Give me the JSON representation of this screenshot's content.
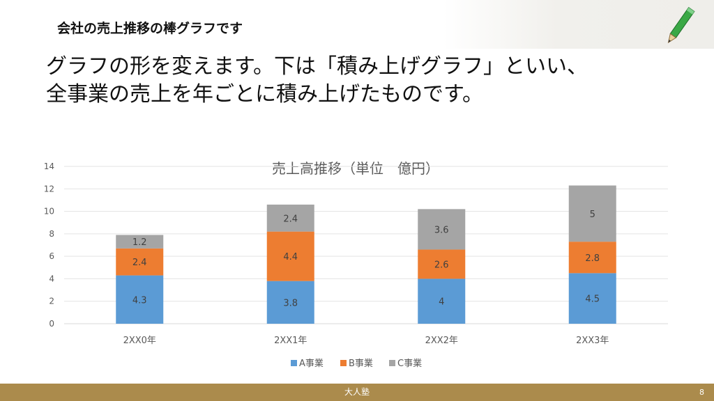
{
  "slide": {
    "title": "会社の売上推移の棒グラフです",
    "body_line1": "グラフの形を変えます。下は「積み上げグラフ」といい、",
    "body_line2": "全事業の売上を年ごとに積み上げたものです。",
    "pencil_icon": "green-pencil-icon"
  },
  "footer": {
    "center_text": "大人塾",
    "page_number": "8",
    "color": "#ab8b4c"
  },
  "chart_data": {
    "type": "bar",
    "stacked": true,
    "title": "売上高推移（単位　億円）",
    "categories": [
      "2XX0年",
      "2XX1年",
      "2XX2年",
      "2XX3年"
    ],
    "series": [
      {
        "name": "A事業",
        "values": [
          4.3,
          3.8,
          4,
          4.5
        ],
        "labels": [
          "4.3",
          "3.8",
          "4",
          "4.5"
        ],
        "color": "#5b9bd5"
      },
      {
        "name": "B事業",
        "values": [
          2.4,
          4.4,
          2.6,
          2.8
        ],
        "labels": [
          "2.4",
          "4.4",
          "2.6",
          "2.8"
        ],
        "color": "#ed7d31"
      },
      {
        "name": "C事業",
        "values": [
          1.2,
          2.4,
          3.6,
          5
        ],
        "labels": [
          "1.2",
          "2.4",
          "3.6",
          "5"
        ],
        "color": "#a5a5a5"
      }
    ],
    "y_ticks": [
      "0",
      "2",
      "4",
      "6",
      "8",
      "10",
      "12",
      "14"
    ],
    "ylim": [
      0,
      14
    ],
    "grid": true,
    "legend_position": "bottom"
  }
}
